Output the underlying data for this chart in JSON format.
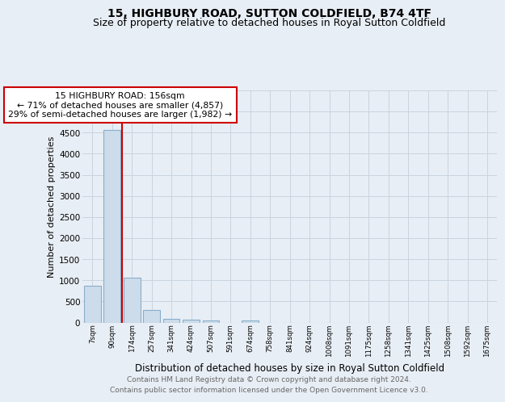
{
  "title1": "15, HIGHBURY ROAD, SUTTON COLDFIELD, B74 4TF",
  "title2": "Size of property relative to detached houses in Royal Sutton Coldfield",
  "xlabel": "Distribution of detached houses by size in Royal Sutton Coldfield",
  "ylabel": "Number of detached properties",
  "footnote1": "Contains HM Land Registry data © Crown copyright and database right 2024.",
  "footnote2": "Contains public sector information licensed under the Open Government Licence v3.0.",
  "bar_labels": [
    "7sqm",
    "90sqm",
    "174sqm",
    "257sqm",
    "341sqm",
    "424sqm",
    "507sqm",
    "591sqm",
    "674sqm",
    "758sqm",
    "841sqm",
    "924sqm",
    "1008sqm",
    "1091sqm",
    "1175sqm",
    "1258sqm",
    "1341sqm",
    "1425sqm",
    "1508sqm",
    "1592sqm",
    "1675sqm"
  ],
  "bar_values": [
    870,
    4570,
    1070,
    290,
    80,
    60,
    45,
    0,
    45,
    0,
    0,
    0,
    0,
    0,
    0,
    0,
    0,
    0,
    0,
    0,
    0
  ],
  "bar_color": "#cddcea",
  "bar_edge_color": "#88aecb",
  "red_line_label": "15 HIGHBURY ROAD: 156sqm",
  "annotation_line1": "← 71% of detached houses are smaller (4,857)",
  "annotation_line2": "29% of semi-detached houses are larger (1,982) →",
  "annotation_box_color": "#ffffff",
  "annotation_box_edge": "#cc0000",
  "ylim": [
    0,
    5500
  ],
  "yticks": [
    0,
    500,
    1000,
    1500,
    2000,
    2500,
    3000,
    3500,
    4000,
    4500,
    5000,
    5500
  ],
  "fig_bg_color": "#e8eef5",
  "plot_bg_color": "#e8eef5",
  "red_line_color": "#cc0000",
  "grid_color": "#c8d4e0",
  "title1_fontsize": 10,
  "title2_fontsize": 9,
  "xlabel_fontsize": 8.5,
  "ylabel_fontsize": 8,
  "footnote_fontsize": 6.5
}
